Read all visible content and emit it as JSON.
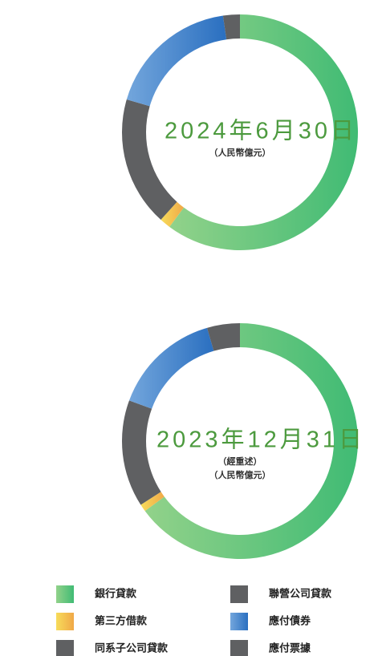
{
  "legend": {
    "categories": [
      "銀行貸款",
      "第三方借款",
      "同系子公司貸款",
      "應付債券",
      "應付票據",
      "聯營公司貸款"
    ],
    "colors": [
      "#5cc27a",
      "#f2c94c",
      "#5f6062",
      "#3f82cc",
      "#5f6062",
      "#5f6062"
    ]
  },
  "chart_data": [
    {
      "type": "pie",
      "title": "2024年6月30日",
      "subtitle": [
        "（人民幣億元）"
      ],
      "values": [
        60.2,
        1.5,
        17.8,
        18.2,
        2.3,
        0
      ]
    },
    {
      "type": "pie",
      "title": "2023年12月31日",
      "subtitle": [
        "（經重述）",
        "（人民幣億元）"
      ],
      "values": [
        64.9,
        1.0,
        14.7,
        14.9,
        4.5,
        0
      ]
    }
  ]
}
